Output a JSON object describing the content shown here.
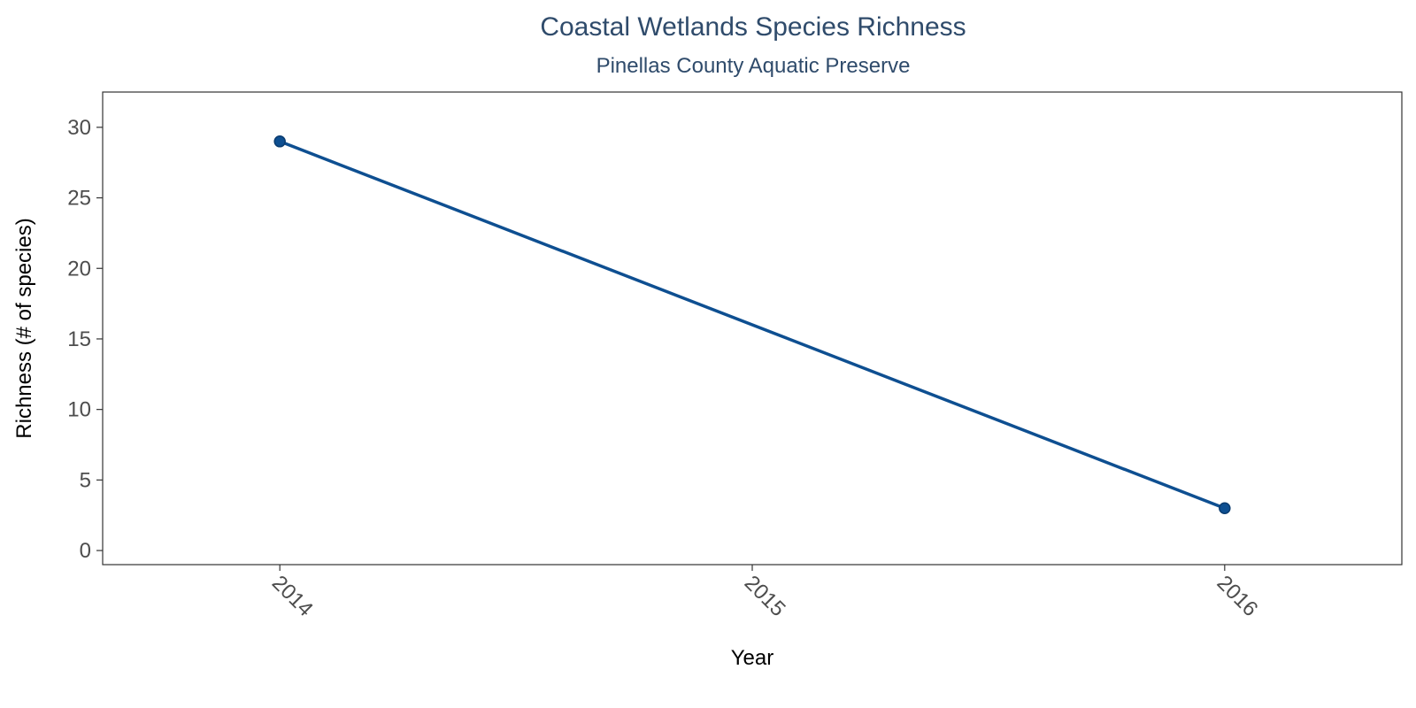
{
  "chart_data": {
    "type": "line",
    "title": "Coastal Wetlands Species Richness",
    "subtitle": "Pinellas County Aquatic Preserve",
    "xlabel": "Year",
    "ylabel": "Richness (# of species)",
    "x_ticks": [
      "2014",
      "2015",
      "2016"
    ],
    "y_ticks": [
      0,
      5,
      10,
      15,
      20,
      25,
      30
    ],
    "xlim": [
      2013.625,
      2016.375
    ],
    "ylim": [
      -1,
      32.5
    ],
    "grid": false,
    "legend": "none",
    "series": [
      {
        "color": "#0e4f91",
        "x": [
          2014,
          2016
        ],
        "y": [
          29,
          3
        ]
      }
    ]
  }
}
